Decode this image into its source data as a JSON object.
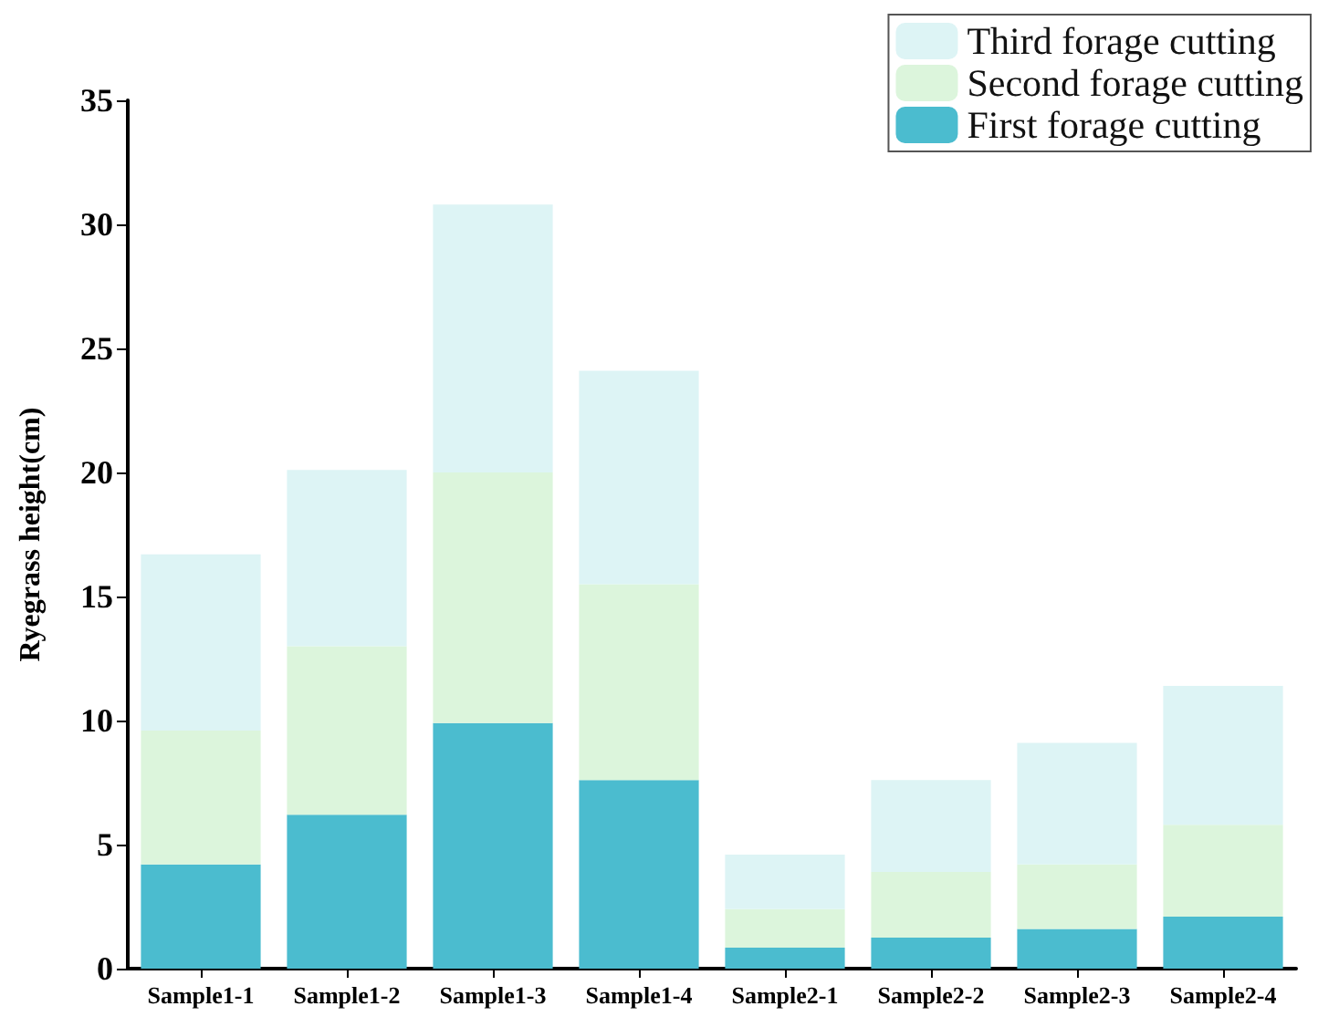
{
  "chart_data": {
    "type": "bar",
    "stacked": true,
    "ylabel": "Ryegrass height(cm)",
    "categories": [
      "Sample1-1",
      "Sample1-2",
      "Sample1-3",
      "Sample1-4",
      "Sample2-1",
      "Sample2-2",
      "Sample2-3",
      "Sample2-4"
    ],
    "series": [
      {
        "name": "First forage cutting",
        "color": "#4bbccf",
        "values": [
          4.2,
          6.2,
          9.9,
          7.6,
          0.85,
          1.25,
          1.6,
          2.1
        ]
      },
      {
        "name": "Second forage cutting",
        "color": "#dcf5dc",
        "values": [
          5.4,
          6.8,
          10.1,
          7.9,
          1.55,
          2.65,
          2.6,
          3.7
        ]
      },
      {
        "name": "Third forage cutting",
        "color": "#ddf4f5",
        "values": [
          7.1,
          7.1,
          10.8,
          8.6,
          2.2,
          3.7,
          4.9,
          5.6
        ]
      }
    ],
    "ylim": [
      0,
      35
    ],
    "yticks": [
      0,
      5,
      10,
      15,
      20,
      25,
      30,
      35
    ],
    "grid": false,
    "legend": "top right"
  }
}
